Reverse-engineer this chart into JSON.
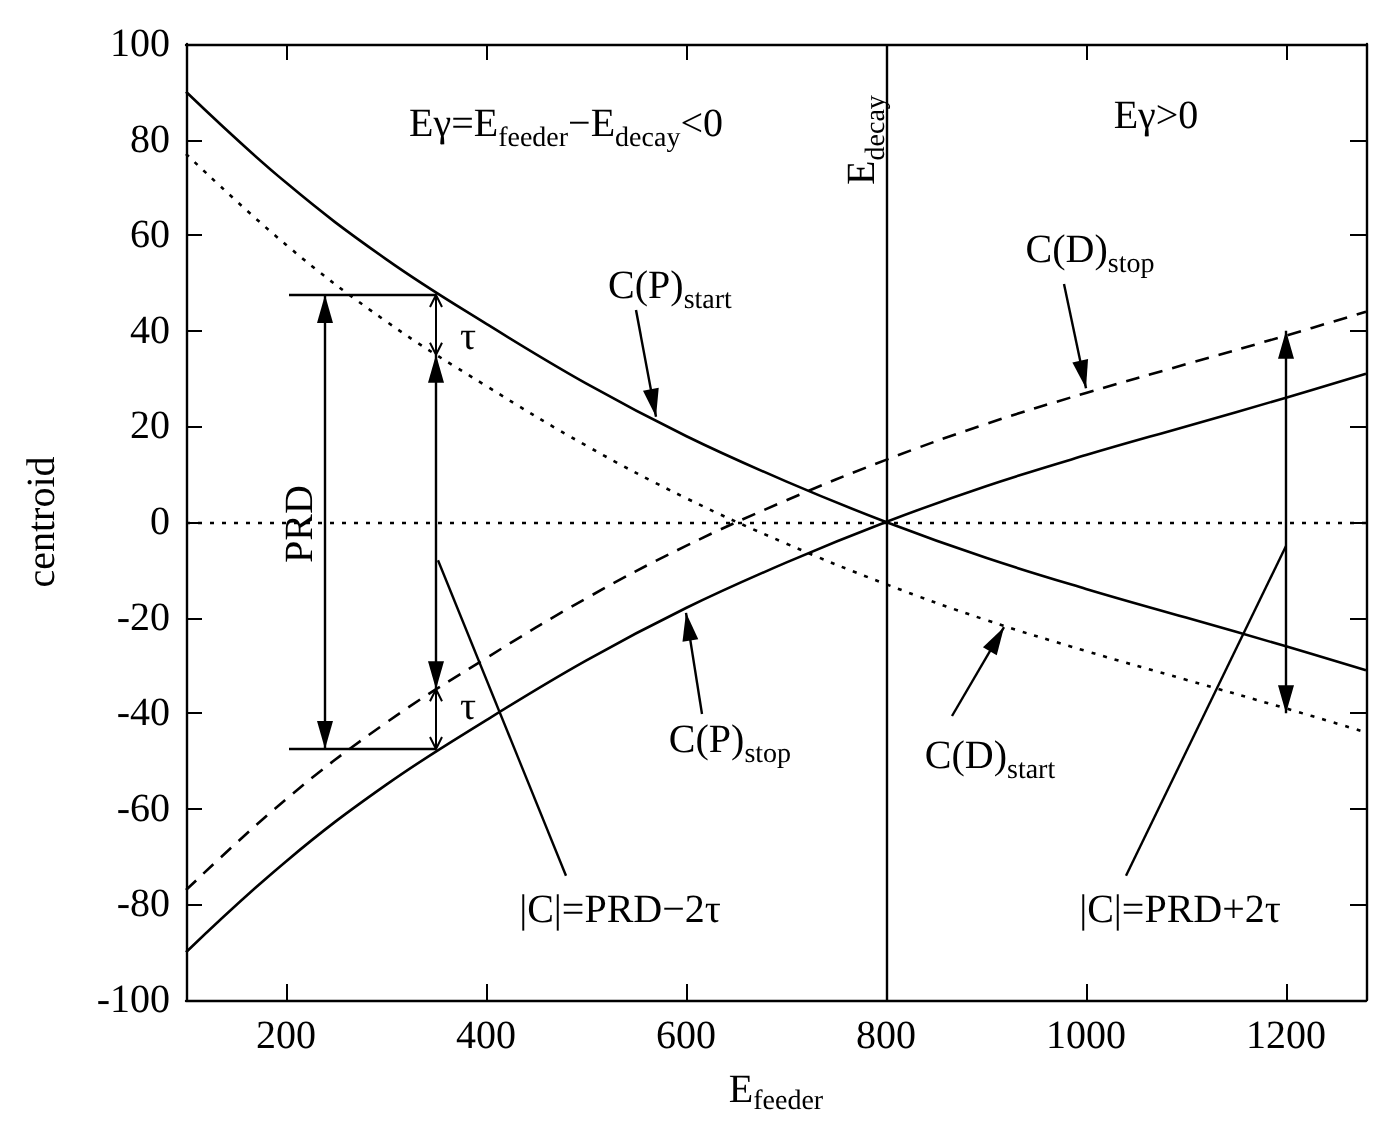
{
  "chart_data": {
    "type": "line",
    "xlabel": "E$_{feeder}$",
    "ylabel": "centroid",
    "x": [
      100,
      200,
      300,
      400,
      500,
      600,
      700,
      800,
      900,
      1000,
      1100,
      1200,
      1280
    ],
    "series": [
      {
        "color": "#000000",
        "line_style": "solid",
        "values": [
          90,
          71,
          55,
          41.5,
          29,
          18,
          8.5,
          0,
          -7.5,
          -14,
          -20,
          -26,
          -31
        ]
      },
      {
        "color": "#000000",
        "line_style": "solid",
        "values": [
          -90,
          -71,
          -55,
          -41.5,
          -29,
          -18,
          -8.5,
          0,
          7.5,
          14,
          20,
          26,
          31
        ]
      },
      {
        "color": "#000000",
        "line_style": "dotted",
        "values": [
          77,
          58,
          42,
          28.5,
          16,
          5,
          -4.5,
          -13,
          -20.5,
          -27,
          -33,
          -39,
          -44
        ]
      },
      {
        "color": "#000000",
        "line_style": "dashed",
        "values": [
          -77,
          -58,
          -42,
          -28.5,
          -16,
          -5,
          4.5,
          13,
          20.5,
          27,
          33,
          39,
          44
        ]
      }
    ],
    "xlim": [
      100,
      1280
    ],
    "xticks": [
      200,
      400,
      600,
      800,
      1000,
      1200
    ],
    "ylim": [
      -100,
      100
    ],
    "yticks": [
      -100,
      -80,
      -60,
      -40,
      -20,
      0,
      20,
      40,
      60,
      80,
      100
    ],
    "grid": false,
    "marker": "none",
    "ref_lines": [
      {
        "axis": "x",
        "value": 800,
        "label": "E$_{decay}$",
        "line_style": "solid"
      },
      {
        "axis": "y",
        "value": 0,
        "line_style": "dotted"
      }
    ],
    "annotations": [
      "Eγ=E$_{feeder}$−E$_{decay}$<0",
      "Eγ>0",
      {
        "text": "C(P)$_{start}$",
        "x": 570,
        "y": 22
      },
      {
        "text": "C(D)$_{stop}$",
        "x": 1000,
        "y": 28
      },
      {
        "text": "C(P)$_{stop}$",
        "x": 600,
        "y": -19
      },
      {
        "text": "C(D)$_{start}$",
        "x": 918,
        "y": -22
      },
      {
        "text": "τ",
        "x": 350,
        "y": 35
      },
      {
        "text": "τ",
        "x": 350,
        "y": -35
      },
      "PRD",
      "|C|=PRD−2τ",
      "|C|=PRD+2τ"
    ]
  }
}
